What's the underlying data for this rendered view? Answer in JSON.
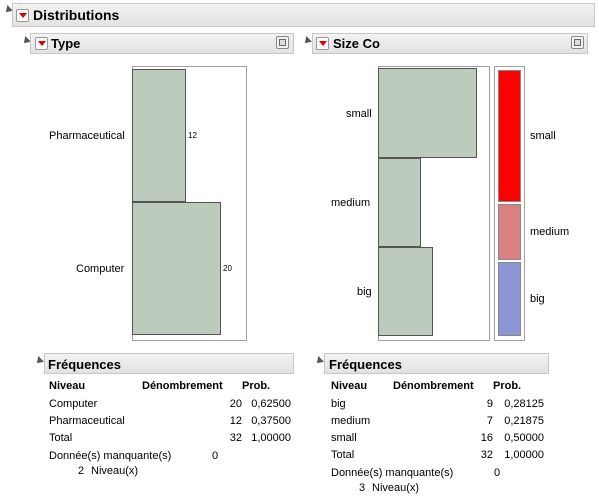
{
  "main": {
    "title": "Distributions"
  },
  "left": {
    "title": "Type",
    "bars": [
      {
        "label": "Pharmaceutical",
        "count": "12",
        "value": 12
      },
      {
        "label": "Computer",
        "count": "20",
        "value": 20
      }
    ],
    "freq": {
      "title": "Fréquences",
      "headers": [
        "Niveau",
        "Dénombrement",
        "Prob."
      ],
      "rows": [
        [
          "Computer",
          "20",
          "0,62500"
        ],
        [
          "Pharmaceutical",
          "12",
          "0,37500"
        ],
        [
          "Total",
          "32",
          "1,00000"
        ]
      ],
      "missing_label": "Donnée(s) manquante(s)",
      "missing_value": "0",
      "levels_count": "2",
      "levels_label": "Niveau(x)"
    }
  },
  "right": {
    "title": "Size Co",
    "bars": [
      {
        "label": "small",
        "value": 16
      },
      {
        "label": "medium",
        "value": 7
      },
      {
        "label": "big",
        "value": 9
      }
    ],
    "mosaic": [
      {
        "label": "small",
        "color": "#ff0000"
      },
      {
        "label": "medium",
        "color": "#d98080"
      },
      {
        "label": "big",
        "color": "#8c96d4"
      }
    ],
    "freq": {
      "title": "Fréquences",
      "headers": [
        "Niveau",
        "Dénombrement",
        "Prob."
      ],
      "rows": [
        [
          "big",
          "9",
          "0,28125"
        ],
        [
          "medium",
          "7",
          "0,21875"
        ],
        [
          "small",
          "16",
          "0,50000"
        ],
        [
          "Total",
          "32",
          "1,00000"
        ]
      ],
      "missing_label": "Donnée(s) manquante(s)",
      "missing_value": "0",
      "levels_count": "3",
      "levels_label": "Niveau(x)"
    }
  }
}
